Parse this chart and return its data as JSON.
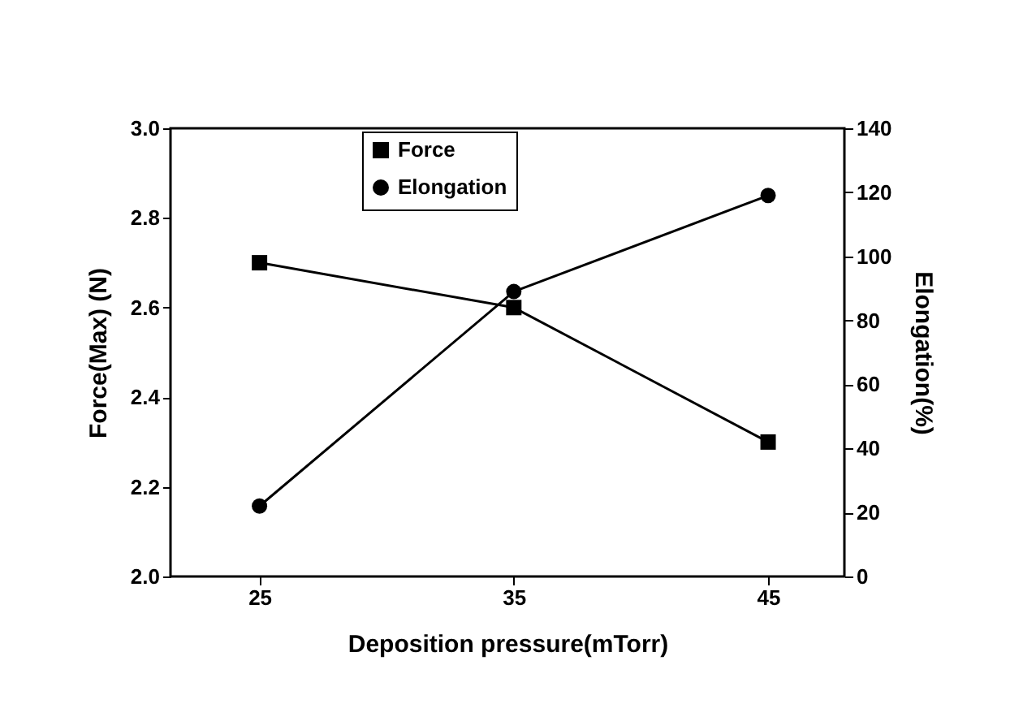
{
  "chart_data": {
    "type": "line",
    "xlabel": "Deposition pressure(mTorr)",
    "ylabel": "Force(Max) (N)",
    "y2label": "Elongation(%)",
    "x": [
      25,
      35,
      45
    ],
    "xlim": [
      21.5,
      48
    ],
    "xticks": [
      25,
      35,
      45
    ],
    "ylim": [
      2.0,
      3.0
    ],
    "yticks": [
      {
        "value": 2,
        "label": "2.0"
      },
      2.2,
      2.4,
      2.6,
      2.8,
      {
        "value": 3,
        "label": "3.0"
      }
    ],
    "y2lim": [
      0,
      140
    ],
    "y2ticks": [
      0,
      20,
      40,
      60,
      80,
      100,
      120,
      140
    ],
    "grid": false,
    "legend": "top",
    "line_style": "solid",
    "series": [
      {
        "name": "Force",
        "color": "#000000",
        "marker": "square",
        "values": [
          2.7,
          2.6,
          2.3
        ]
      },
      {
        "name": "Elongation",
        "color": "#000000",
        "marker": "circle",
        "axis": "y2",
        "values": [
          22,
          89,
          119
        ]
      }
    ]
  }
}
